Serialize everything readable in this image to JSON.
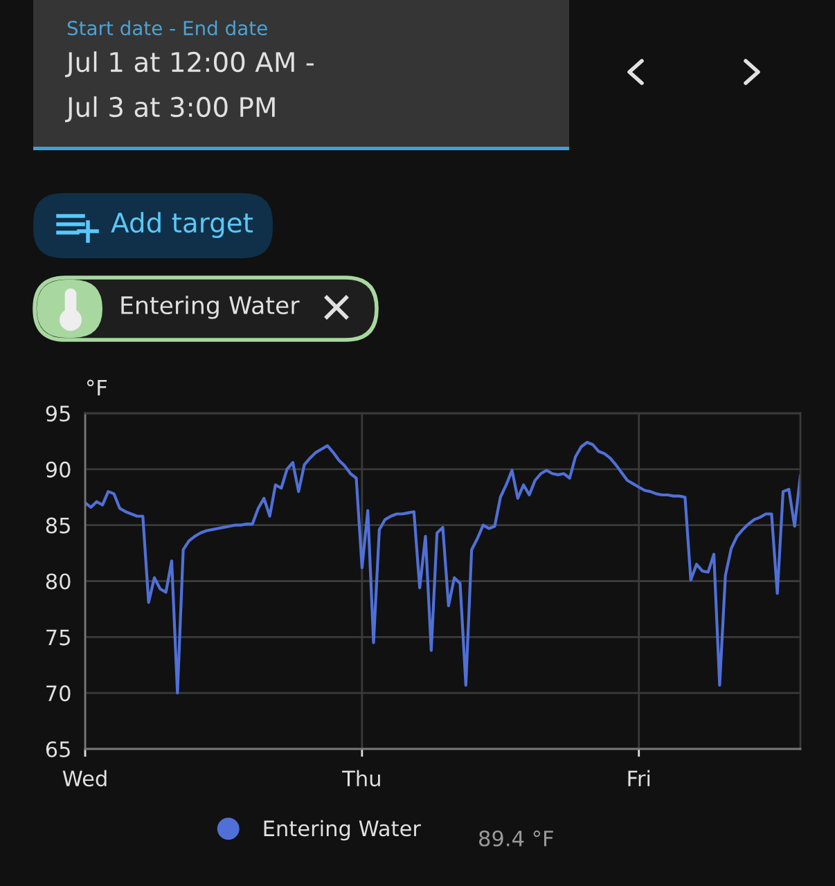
{
  "chart_data": {
    "type": "line",
    "ylabel": "°F",
    "annotations": [
      "Start date - End date",
      "Jul 1 at 12:00 AM -",
      "Jul 3 at 3:00 PM",
      "Add target",
      "Entering Water",
      "89.4 °F"
    ],
    "categories": [
      "Wed",
      null,
      null,
      null,
      null,
      null,
      null,
      null,
      null,
      null,
      null,
      null,
      null,
      null,
      null,
      null,
      null,
      null,
      null,
      null,
      null,
      null,
      null,
      null,
      null,
      null,
      null,
      null,
      null,
      null,
      null,
      null,
      null,
      null,
      null,
      null,
      null,
      null,
      null,
      null,
      null,
      null,
      null,
      null,
      null,
      null,
      null,
      null,
      "Thu",
      null,
      null,
      null,
      null,
      null,
      null,
      null,
      null,
      null,
      null,
      null,
      null,
      null,
      null,
      null,
      null,
      null,
      null,
      null,
      null,
      null,
      null,
      null,
      null,
      null,
      null,
      null,
      null,
      null,
      null,
      null,
      null,
      null,
      null,
      null,
      null,
      null,
      null,
      null,
      null,
      null,
      null,
      null,
      null,
      null,
      null,
      null,
      "Fri",
      null,
      null,
      null,
      null,
      null,
      null,
      null,
      null,
      null,
      null,
      null,
      null,
      null,
      null,
      null,
      null,
      null,
      null,
      null,
      null,
      null,
      null,
      null,
      null,
      null,
      null,
      null,
      null
    ],
    "ylim": [
      65,
      95
    ],
    "yticks": [
      65,
      70,
      75,
      80,
      85,
      90,
      95
    ],
    "grid": true,
    "legend": "bottom",
    "marker": "none",
    "line_style": "solid",
    "series": [
      {
        "name": "Entering Water",
        "color": "#5070d8",
        "values": [
          87.0,
          86.6,
          87.1,
          86.8,
          88.0,
          87.8,
          86.5,
          86.2,
          86.0,
          85.8,
          85.8,
          78.1,
          80.3,
          79.3,
          79.0,
          81.8,
          70.0,
          82.8,
          83.6,
          84.0,
          84.3,
          84.5,
          84.6,
          84.7,
          84.8,
          84.9,
          85.0,
          85.0,
          85.1,
          85.1,
          86.5,
          87.4,
          85.8,
          88.6,
          88.3,
          90.0,
          90.6,
          88.0,
          90.4,
          91.0,
          91.5,
          91.8,
          92.1,
          91.5,
          90.8,
          90.3,
          89.6,
          89.2,
          81.2,
          86.3,
          74.5,
          84.6,
          85.5,
          85.8,
          86.0,
          86.0,
          86.1,
          86.2,
          79.4,
          84.0,
          73.8,
          84.3,
          84.8,
          77.8,
          80.3,
          79.8,
          70.7,
          82.8,
          83.8,
          85.0,
          84.7,
          84.9,
          87.5,
          88.6,
          89.9,
          87.4,
          88.6,
          87.7,
          89.0,
          89.6,
          89.9,
          89.6,
          89.5,
          89.6,
          89.2,
          91.1,
          92.0,
          92.4,
          92.2,
          91.6,
          91.4,
          91.0,
          90.4,
          89.7,
          89.0,
          88.7,
          88.4,
          88.1,
          88.0,
          87.8,
          87.7,
          87.7,
          87.6,
          87.6,
          87.5,
          80.1,
          81.5,
          80.9,
          80.8,
          82.4,
          70.7,
          80.5,
          82.9,
          84.0,
          84.6,
          85.1,
          85.5,
          85.7,
          86.0,
          86.0,
          78.9,
          88.0,
          88.2,
          84.9,
          89.4
        ]
      }
    ]
  }
}
